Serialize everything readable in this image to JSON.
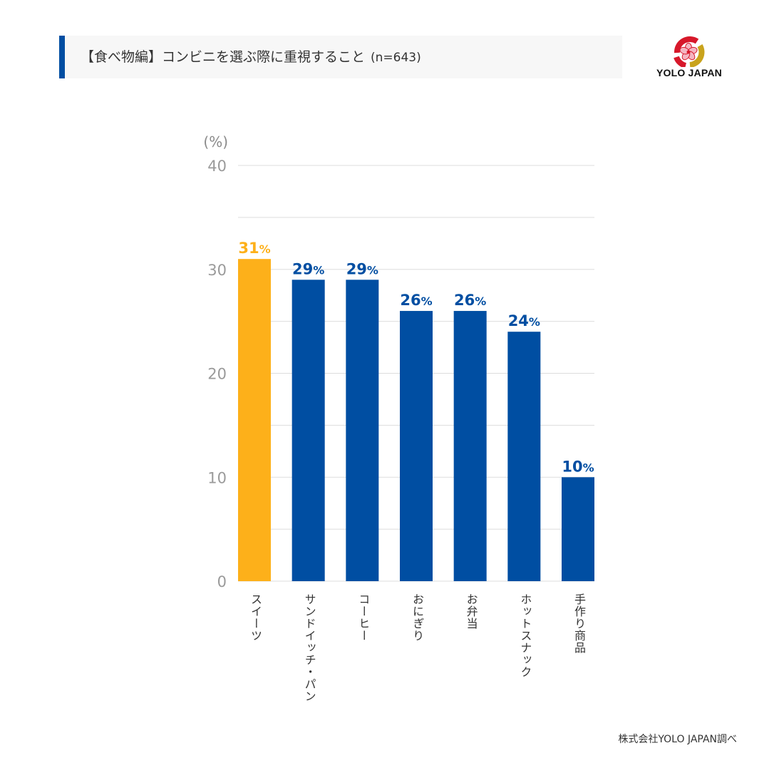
{
  "title": {
    "main": "【食べ物編】コンビニを選ぶ際に重視すること",
    "sample": "(n=643)"
  },
  "logo": {
    "text": "YOLO JAPAN",
    "icon": "sakura-circle-logo-icon",
    "colors": {
      "red": "#d7182a",
      "gold": "#c9a31c",
      "pink": "#f4b6c2"
    }
  },
  "source": "株式会社YOLO JAPAN調べ",
  "colors": {
    "accent": "#004ea2",
    "bar_default": "#004ea2",
    "bar_highlight": "#fdb01a",
    "grid": "#dddddd"
  },
  "chart_data": {
    "type": "bar",
    "ylabel": "(%)",
    "ylim": [
      0,
      40
    ],
    "yticks": [
      0,
      10,
      20,
      30,
      40
    ],
    "grid": true,
    "categories": [
      "スイーツ",
      "サンドイッチ・パン",
      "コーヒー",
      "おにぎり",
      "お弁当",
      "ホットスナック",
      "手作り商品"
    ],
    "values": [
      31,
      29,
      29,
      26,
      26,
      24,
      10
    ],
    "value_labels": [
      "31",
      "29",
      "29",
      "26",
      "26",
      "24",
      "10"
    ],
    "value_suffix": "%",
    "highlight_index": 0
  }
}
